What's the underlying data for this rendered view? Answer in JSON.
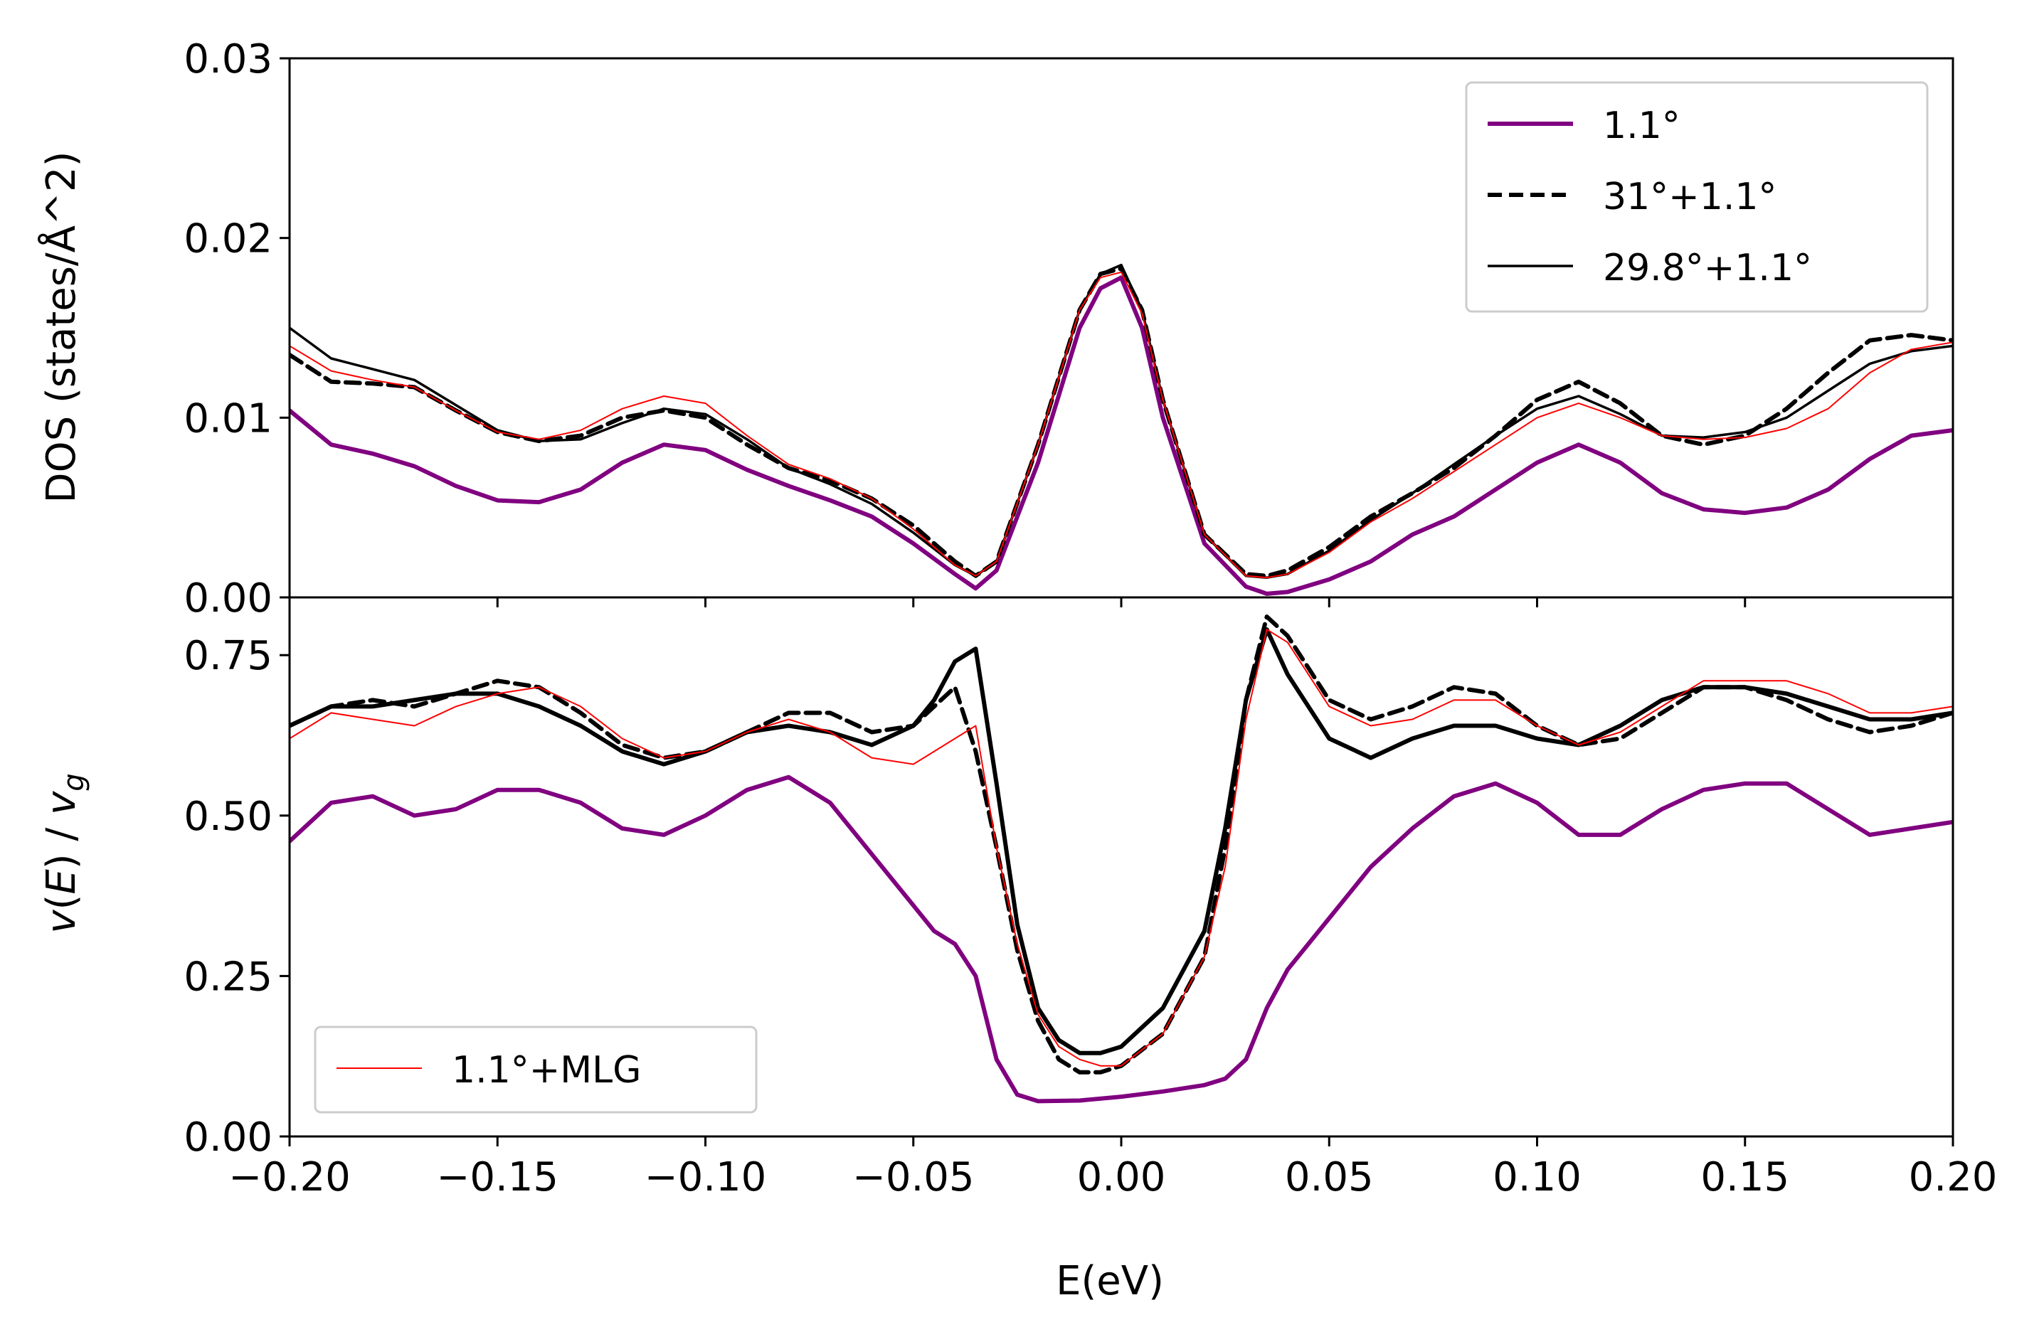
{
  "chart_data": [
    {
      "type": "line",
      "panel": "top",
      "xlabel": "",
      "ylabel": "DOS (states/Å^2)",
      "xlim": [
        -0.2,
        0.2
      ],
      "ylim": [
        0.0,
        0.03
      ],
      "xticks": [
        "−0.20",
        "−0.15",
        "−0.10",
        "−0.05",
        "0.00",
        "0.05",
        "0.10",
        "0.15",
        "0.20"
      ],
      "yticks": [
        "0.00",
        "0.01",
        "0.02",
        "0.03"
      ],
      "legend": {
        "placement": "top-right",
        "entries": [
          "1.1°",
          "31°+1.1°",
          "29.8°+1.1°"
        ]
      },
      "grid": false,
      "series": [
        {
          "name": "1.1°",
          "color": "#800080",
          "style": "solid-thick",
          "x": [
            -0.2,
            -0.19,
            -0.18,
            -0.17,
            -0.16,
            -0.15,
            -0.14,
            -0.13,
            -0.12,
            -0.11,
            -0.1,
            -0.09,
            -0.08,
            -0.07,
            -0.06,
            -0.05,
            -0.04,
            -0.035,
            -0.03,
            -0.02,
            -0.01,
            -0.005,
            0.0,
            0.005,
            0.01,
            0.02,
            0.03,
            0.035,
            0.04,
            0.05,
            0.06,
            0.07,
            0.08,
            0.09,
            0.1,
            0.11,
            0.12,
            0.13,
            0.14,
            0.15,
            0.16,
            0.17,
            0.18,
            0.19,
            0.2
          ],
          "y": [
            0.0104,
            0.0085,
            0.008,
            0.0073,
            0.0062,
            0.0054,
            0.0053,
            0.006,
            0.0075,
            0.0085,
            0.0082,
            0.0071,
            0.0062,
            0.0054,
            0.0045,
            0.003,
            0.0013,
            0.0005,
            0.0015,
            0.0075,
            0.015,
            0.0172,
            0.0178,
            0.015,
            0.01,
            0.003,
            0.0006,
            0.0002,
            0.0003,
            0.001,
            0.002,
            0.0035,
            0.0045,
            0.006,
            0.0075,
            0.0085,
            0.0075,
            0.0058,
            0.0049,
            0.0047,
            0.005,
            0.006,
            0.0077,
            0.009,
            0.0093
          ]
        },
        {
          "name": "31°+1.1°",
          "color": "#000000",
          "style": "dashed",
          "x": [
            -0.2,
            -0.19,
            -0.18,
            -0.17,
            -0.16,
            -0.15,
            -0.14,
            -0.13,
            -0.12,
            -0.11,
            -0.1,
            -0.09,
            -0.08,
            -0.07,
            -0.06,
            -0.05,
            -0.04,
            -0.035,
            -0.03,
            -0.02,
            -0.01,
            -0.005,
            0.0,
            0.005,
            0.01,
            0.02,
            0.03,
            0.035,
            0.04,
            0.05,
            0.06,
            0.07,
            0.08,
            0.09,
            0.1,
            0.11,
            0.12,
            0.13,
            0.14,
            0.15,
            0.16,
            0.17,
            0.18,
            0.19,
            0.2
          ],
          "y": [
            0.0135,
            0.012,
            0.0119,
            0.0117,
            0.0104,
            0.0092,
            0.0087,
            0.009,
            0.01,
            0.0104,
            0.01,
            0.0085,
            0.0072,
            0.0065,
            0.0055,
            0.004,
            0.002,
            0.0012,
            0.002,
            0.0085,
            0.016,
            0.018,
            0.0183,
            0.016,
            0.011,
            0.0035,
            0.0013,
            0.0012,
            0.0015,
            0.0028,
            0.0045,
            0.0058,
            0.0072,
            0.009,
            0.011,
            0.012,
            0.0108,
            0.009,
            0.0085,
            0.009,
            0.0105,
            0.0125,
            0.0143,
            0.0146,
            0.0143
          ]
        },
        {
          "name": "29.8°+1.1°",
          "color": "#000000",
          "style": "solid-thin",
          "x": [
            -0.2,
            -0.19,
            -0.18,
            -0.17,
            -0.16,
            -0.15,
            -0.14,
            -0.13,
            -0.12,
            -0.11,
            -0.1,
            -0.09,
            -0.08,
            -0.07,
            -0.06,
            -0.05,
            -0.04,
            -0.035,
            -0.03,
            -0.02,
            -0.01,
            -0.005,
            0.0,
            0.005,
            0.01,
            0.02,
            0.03,
            0.035,
            0.04,
            0.05,
            0.06,
            0.07,
            0.08,
            0.09,
            0.1,
            0.11,
            0.12,
            0.13,
            0.14,
            0.15,
            0.16,
            0.17,
            0.18,
            0.19,
            0.2
          ],
          "y": [
            0.015,
            0.0133,
            0.0127,
            0.0121,
            0.0107,
            0.0093,
            0.0087,
            0.0088,
            0.0097,
            0.0105,
            0.0102,
            0.0088,
            0.0072,
            0.0063,
            0.0052,
            0.0036,
            0.0018,
            0.0012,
            0.002,
            0.0085,
            0.016,
            0.018,
            0.0185,
            0.016,
            0.011,
            0.0035,
            0.0012,
            0.0011,
            0.0013,
            0.0026,
            0.0043,
            0.0058,
            0.0074,
            0.009,
            0.0105,
            0.0112,
            0.0102,
            0.009,
            0.0089,
            0.0092,
            0.01,
            0.0115,
            0.013,
            0.0137,
            0.014
          ]
        },
        {
          "name": "1.1°+MLG",
          "color": "#ff0000",
          "style": "solid-hairline",
          "x": [
            -0.2,
            -0.19,
            -0.18,
            -0.17,
            -0.16,
            -0.15,
            -0.14,
            -0.13,
            -0.12,
            -0.11,
            -0.1,
            -0.09,
            -0.08,
            -0.07,
            -0.06,
            -0.05,
            -0.04,
            -0.035,
            -0.03,
            -0.02,
            -0.01,
            -0.005,
            0.0,
            0.005,
            0.01,
            0.02,
            0.03,
            0.035,
            0.04,
            0.05,
            0.06,
            0.07,
            0.08,
            0.09,
            0.1,
            0.11,
            0.12,
            0.13,
            0.14,
            0.15,
            0.16,
            0.17,
            0.18,
            0.19,
            0.2
          ],
          "y": [
            0.014,
            0.0126,
            0.0121,
            0.0117,
            0.0104,
            0.0092,
            0.0088,
            0.0093,
            0.0105,
            0.0112,
            0.0108,
            0.009,
            0.0074,
            0.0066,
            0.0055,
            0.0038,
            0.0018,
            0.0012,
            0.002,
            0.0085,
            0.016,
            0.0178,
            0.0181,
            0.0158,
            0.011,
            0.0035,
            0.0012,
            0.0011,
            0.0013,
            0.0025,
            0.0042,
            0.0055,
            0.007,
            0.0085,
            0.01,
            0.0108,
            0.01,
            0.009,
            0.0088,
            0.0089,
            0.0094,
            0.0105,
            0.0125,
            0.0138,
            0.0142
          ]
        }
      ]
    },
    {
      "type": "line",
      "panel": "bottom",
      "xlabel": "E(eV)",
      "ylabel": "v(E) / v_g",
      "xlim": [
        -0.2,
        0.2
      ],
      "ylim": [
        0.0,
        0.84
      ],
      "xticks": [
        "−0.20",
        "−0.15",
        "−0.10",
        "−0.05",
        "0.00",
        "0.05",
        "0.10",
        "0.15",
        "0.20"
      ],
      "yticks": [
        "0.00",
        "0.25",
        "0.50",
        "0.75"
      ],
      "legend": {
        "placement": "bottom-left",
        "entries": [
          "1.1°+MLG"
        ]
      },
      "grid": false,
      "series": [
        {
          "name": "1.1°",
          "color": "#800080",
          "style": "solid-thick",
          "x": [
            -0.2,
            -0.19,
            -0.18,
            -0.17,
            -0.16,
            -0.15,
            -0.14,
            -0.13,
            -0.12,
            -0.11,
            -0.1,
            -0.09,
            -0.08,
            -0.07,
            -0.06,
            -0.05,
            -0.045,
            -0.04,
            -0.035,
            -0.03,
            -0.025,
            -0.02,
            -0.01,
            0.0,
            0.01,
            0.02,
            0.025,
            0.03,
            0.035,
            0.04,
            0.05,
            0.06,
            0.07,
            0.08,
            0.09,
            0.1,
            0.11,
            0.12,
            0.13,
            0.14,
            0.15,
            0.16,
            0.17,
            0.18,
            0.19,
            0.2
          ],
          "y": [
            0.46,
            0.52,
            0.53,
            0.5,
            0.51,
            0.54,
            0.54,
            0.52,
            0.48,
            0.47,
            0.5,
            0.54,
            0.56,
            0.52,
            0.44,
            0.36,
            0.32,
            0.3,
            0.25,
            0.12,
            0.065,
            0.055,
            0.056,
            0.062,
            0.07,
            0.08,
            0.09,
            0.12,
            0.2,
            0.26,
            0.34,
            0.42,
            0.48,
            0.53,
            0.55,
            0.52,
            0.47,
            0.47,
            0.51,
            0.54,
            0.55,
            0.55,
            0.51,
            0.47,
            0.48,
            0.49
          ]
        },
        {
          "name": "31°+1.1°",
          "color": "#000000",
          "style": "dashed",
          "x": [
            -0.2,
            -0.19,
            -0.18,
            -0.17,
            -0.16,
            -0.15,
            -0.14,
            -0.13,
            -0.12,
            -0.11,
            -0.1,
            -0.09,
            -0.08,
            -0.07,
            -0.06,
            -0.05,
            -0.045,
            -0.04,
            -0.035,
            -0.03,
            -0.025,
            -0.02,
            -0.015,
            -0.01,
            -0.005,
            0.0,
            0.01,
            0.02,
            0.025,
            0.03,
            0.035,
            0.04,
            0.05,
            0.06,
            0.07,
            0.08,
            0.09,
            0.1,
            0.11,
            0.12,
            0.13,
            0.14,
            0.15,
            0.16,
            0.17,
            0.18,
            0.19,
            0.2
          ],
          "y": [
            0.64,
            0.67,
            0.68,
            0.67,
            0.69,
            0.71,
            0.7,
            0.66,
            0.61,
            0.59,
            0.6,
            0.63,
            0.66,
            0.66,
            0.63,
            0.64,
            0.67,
            0.7,
            0.6,
            0.45,
            0.29,
            0.18,
            0.12,
            0.1,
            0.1,
            0.11,
            0.16,
            0.28,
            0.45,
            0.68,
            0.81,
            0.78,
            0.68,
            0.65,
            0.67,
            0.7,
            0.69,
            0.64,
            0.61,
            0.62,
            0.66,
            0.7,
            0.7,
            0.68,
            0.65,
            0.63,
            0.64,
            0.66
          ]
        },
        {
          "name": "29.8°+1.1°",
          "color": "#000000",
          "style": "solid-medium",
          "x": [
            -0.2,
            -0.19,
            -0.18,
            -0.17,
            -0.16,
            -0.15,
            -0.14,
            -0.13,
            -0.12,
            -0.11,
            -0.1,
            -0.09,
            -0.08,
            -0.07,
            -0.06,
            -0.05,
            -0.045,
            -0.04,
            -0.035,
            -0.03,
            -0.025,
            -0.02,
            -0.015,
            -0.01,
            -0.005,
            0.0,
            0.01,
            0.02,
            0.025,
            0.03,
            0.035,
            0.04,
            0.05,
            0.06,
            0.07,
            0.08,
            0.09,
            0.1,
            0.11,
            0.12,
            0.13,
            0.14,
            0.15,
            0.16,
            0.17,
            0.18,
            0.19,
            0.2
          ],
          "y": [
            0.64,
            0.67,
            0.67,
            0.68,
            0.69,
            0.69,
            0.67,
            0.64,
            0.6,
            0.58,
            0.6,
            0.63,
            0.64,
            0.63,
            0.61,
            0.64,
            0.68,
            0.74,
            0.76,
            0.55,
            0.33,
            0.2,
            0.15,
            0.13,
            0.13,
            0.14,
            0.2,
            0.32,
            0.48,
            0.68,
            0.79,
            0.72,
            0.62,
            0.59,
            0.62,
            0.64,
            0.64,
            0.62,
            0.61,
            0.64,
            0.68,
            0.7,
            0.7,
            0.69,
            0.67,
            0.65,
            0.65,
            0.66
          ]
        },
        {
          "name": "1.1°+MLG",
          "color": "#ff0000",
          "style": "solid-hairline",
          "x": [
            -0.2,
            -0.19,
            -0.18,
            -0.17,
            -0.16,
            -0.15,
            -0.14,
            -0.13,
            -0.12,
            -0.11,
            -0.1,
            -0.09,
            -0.08,
            -0.07,
            -0.06,
            -0.05,
            -0.045,
            -0.04,
            -0.035,
            -0.03,
            -0.025,
            -0.02,
            -0.015,
            -0.01,
            -0.005,
            0.0,
            0.01,
            0.02,
            0.025,
            0.03,
            0.035,
            0.04,
            0.05,
            0.06,
            0.07,
            0.08,
            0.09,
            0.1,
            0.11,
            0.12,
            0.13,
            0.14,
            0.15,
            0.16,
            0.17,
            0.18,
            0.19,
            0.2
          ],
          "y": [
            0.62,
            0.66,
            0.65,
            0.64,
            0.67,
            0.69,
            0.7,
            0.67,
            0.62,
            0.59,
            0.6,
            0.63,
            0.65,
            0.63,
            0.59,
            0.58,
            0.6,
            0.62,
            0.64,
            0.45,
            0.3,
            0.19,
            0.14,
            0.12,
            0.11,
            0.11,
            0.16,
            0.28,
            0.42,
            0.65,
            0.79,
            0.77,
            0.67,
            0.64,
            0.65,
            0.68,
            0.68,
            0.64,
            0.61,
            0.63,
            0.67,
            0.71,
            0.71,
            0.71,
            0.69,
            0.66,
            0.66,
            0.67
          ]
        }
      ]
    }
  ]
}
